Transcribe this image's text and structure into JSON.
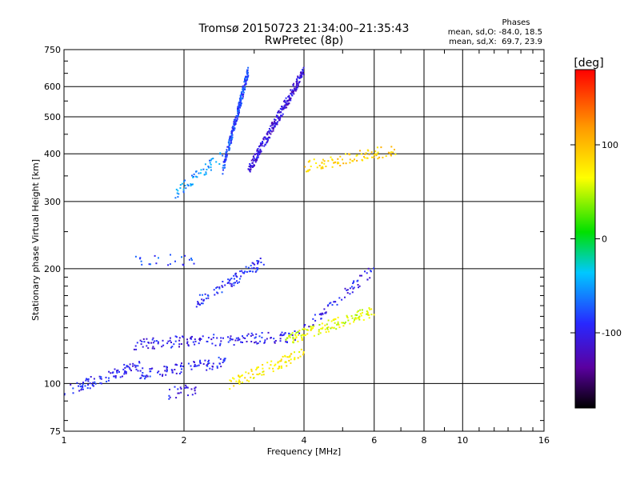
{
  "title_line1": "Tromsø 20150723 21:34:00–21:35:43",
  "title_line2": "RwPretec (8p)",
  "stats": {
    "heading": "Phases",
    "line1": "mean, sd,O: -84.0, 18.5",
    "line2": "mean, sd,X:  69.7, 23.9"
  },
  "colorbar": {
    "label": "[deg]",
    "ticks": [
      "100",
      "0",
      "-100"
    ],
    "tick_values": [
      100,
      0,
      -100
    ],
    "range": [
      -180,
      180
    ],
    "colors": [
      "#000000",
      "#5a00a0",
      "#2828ff",
      "#00c8ff",
      "#00e000",
      "#ffff00",
      "#ff9900",
      "#ff0000"
    ]
  },
  "chart_data": {
    "type": "scatter",
    "title": "Tromsø 20150723 21:34:00–21:35:43",
    "subtitle": "RwPretec (8p)",
    "xlabel": "Frequency [MHz]",
    "ylabel": "Stationary phase Virtual Height [km]",
    "xscale": "log",
    "yscale": "log",
    "xlim": [
      1,
      16
    ],
    "ylim": [
      75,
      750
    ],
    "xticks": [
      1,
      2,
      4,
      6,
      8,
      10,
      16
    ],
    "xtick_labels": [
      "1",
      "2",
      "4",
      "6",
      "8",
      "10",
      "16"
    ],
    "yticks": [
      75,
      100,
      200,
      300,
      400,
      500,
      600,
      750
    ],
    "ytick_labels": [
      "75",
      "100",
      "200",
      "300",
      "400",
      "500",
      "600",
      "750"
    ],
    "grid": true,
    "color_scale": "phase [deg]",
    "traces": [
      {
        "x_range": [
          1.0,
          1.55
        ],
        "y_range": [
          95,
          112
        ],
        "phase": -95,
        "n": 90
      },
      {
        "x_range": [
          1.55,
          2.55
        ],
        "y_range": [
          106,
          114
        ],
        "phase": -95,
        "n": 90
      },
      {
        "x_range": [
          1.5,
          3.9
        ],
        "y_range": [
          127,
          133
        ],
        "phase": -100,
        "n": 150
      },
      {
        "x_range": [
          3.6,
          6.0
        ],
        "y_range": [
          130,
          155
        ],
        "phase": 60,
        "n": 130
      },
      {
        "x_range": [
          2.6,
          4.0
        ],
        "y_range": [
          100,
          120
        ],
        "phase": 75,
        "n": 90
      },
      {
        "x_range": [
          1.8,
          2.15
        ],
        "y_range": [
          94,
          97
        ],
        "phase": -100,
        "n": 25
      },
      {
        "x_range": [
          2.15,
          3.2
        ],
        "y_range": [
          163,
          210
        ],
        "phase": -90,
        "n": 90
      },
      {
        "x_range": [
          1.5,
          2.2
        ],
        "y_range": [
          208,
          212
        ],
        "phase": -80,
        "n": 22
      },
      {
        "x_range": [
          1.9,
          2.5
        ],
        "y_range": [
          315,
          395
        ],
        "phase": -55,
        "n": 55
      },
      {
        "x_range": [
          2.5,
          2.9
        ],
        "y_range": [
          360,
          660
        ],
        "phase": -80,
        "n": 220
      },
      {
        "x_range": [
          2.9,
          4.0
        ],
        "y_range": [
          360,
          660
        ],
        "phase": -110,
        "n": 260
      },
      {
        "x_range": [
          4.0,
          6.8
        ],
        "y_range": [
          370,
          410
        ],
        "phase": 90,
        "n": 90
      },
      {
        "x_range": [
          4.0,
          6.0
        ],
        "y_range": [
          140,
          200
        ],
        "phase": -100,
        "n": 60
      }
    ]
  }
}
